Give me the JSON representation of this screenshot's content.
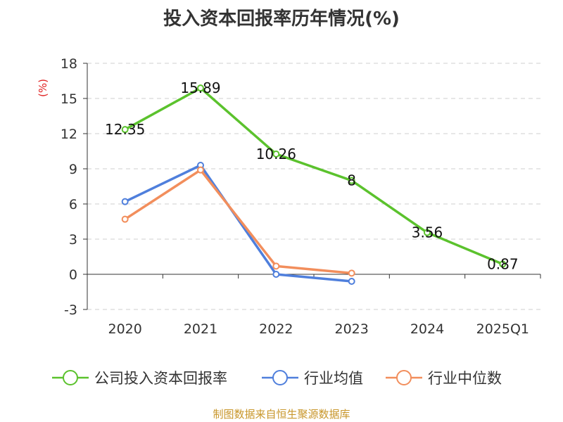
{
  "chart_data": {
    "type": "line",
    "title": "投入资本回报率历年情况(%)",
    "ylabel": "(%)",
    "xlabel": "",
    "categories": [
      "2020",
      "2021",
      "2022",
      "2023",
      "2024",
      "2025Q1"
    ],
    "ylim": [
      -3,
      18
    ],
    "yticks": [
      -3,
      0,
      3,
      6,
      9,
      12,
      15,
      18
    ],
    "grid": true,
    "legend_position": "bottom",
    "series": [
      {
        "name": "公司投入资本回报率",
        "color": "#5bc22d",
        "values": [
          12.35,
          15.89,
          10.26,
          8,
          3.56,
          0.87
        ],
        "labels": [
          "12.35",
          "15.89",
          "10.26",
          "8",
          "3.56",
          "0.87"
        ]
      },
      {
        "name": "行业均值",
        "color": "#4f7fdc",
        "values": [
          6.2,
          9.3,
          0.0,
          -0.6,
          null,
          null
        ]
      },
      {
        "name": "行业中位数",
        "color": "#f28e5c",
        "values": [
          4.7,
          8.9,
          0.7,
          0.1,
          null,
          null
        ]
      }
    ]
  },
  "footer": {
    "source": "制图数据来自恒生聚源数据库"
  }
}
